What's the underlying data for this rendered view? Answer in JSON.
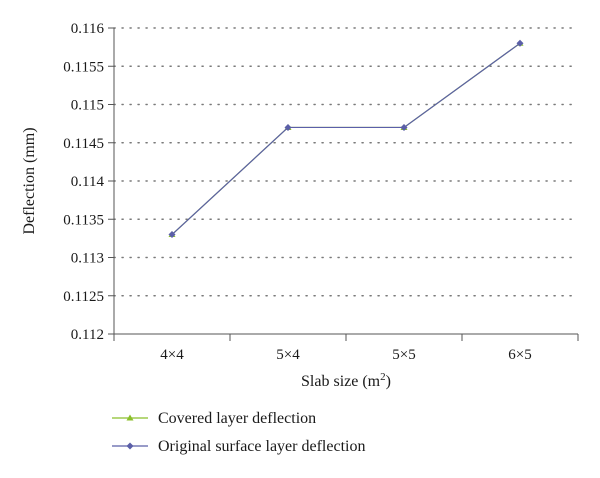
{
  "chart_data": {
    "type": "line",
    "categories": [
      "4×4",
      "5×4",
      "5×5",
      "6×5"
    ],
    "series": [
      {
        "name": "Covered layer deflection",
        "values": [
          0.1133,
          0.1147,
          0.1147,
          0.1158
        ],
        "color": "#8bbf2a",
        "marker": "triangle"
      },
      {
        "name": "Original surface layer deflection",
        "values": [
          0.1133,
          0.1147,
          0.1147,
          0.1158
        ],
        "color": "#5b5fa8",
        "marker": "diamond"
      }
    ],
    "xlabel": "Slab size (m",
    "xlabel_superscript": "2",
    "xlabel_suffix": ")",
    "ylabel": "Deflection (mm)",
    "ylim": [
      0.112,
      0.116
    ],
    "yticks": [
      "0.112",
      "0.1125",
      "0.113",
      "0.1135",
      "0.114",
      "0.1145",
      "0.115",
      "0.1155",
      "0.116"
    ],
    "grid": "dotted horizontal",
    "legend_position": "bottom-left"
  }
}
